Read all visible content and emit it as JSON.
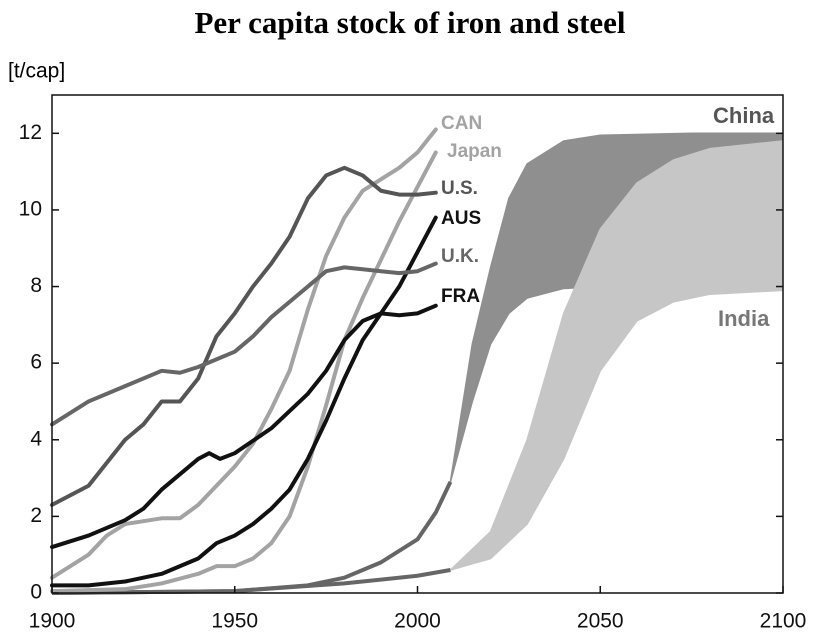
{
  "chart_data": {
    "type": "line",
    "title": "Per capita stock of iron and steel",
    "y_label": "[t/cap]",
    "xlim": [
      1900,
      2100
    ],
    "ylim": [
      0,
      13
    ],
    "xticks": [
      1900,
      1950,
      2000,
      2050,
      2100
    ],
    "yticks": [
      0,
      2,
      4,
      6,
      8,
      10,
      12
    ],
    "series": [
      {
        "name": "CAN",
        "color": "#a3a3a3",
        "x": [
          1900,
          1910,
          1915,
          1920,
          1930,
          1935,
          1940,
          1945,
          1950,
          1955,
          1960,
          1965,
          1970,
          1975,
          1980,
          1985,
          1990,
          1995,
          2000,
          2005
        ],
        "values": [
          0.4,
          1.0,
          1.5,
          1.8,
          1.95,
          1.95,
          2.3,
          2.8,
          3.3,
          3.9,
          4.8,
          5.8,
          7.4,
          8.8,
          9.8,
          10.5,
          10.8,
          11.1,
          11.5,
          12.1
        ]
      },
      {
        "name": "Japan",
        "color": "#a3a3a3",
        "x": [
          1900,
          1920,
          1930,
          1940,
          1945,
          1950,
          1955,
          1960,
          1965,
          1970,
          1975,
          1980,
          1985,
          1990,
          1995,
          2000,
          2005
        ],
        "values": [
          0.05,
          0.1,
          0.25,
          0.5,
          0.7,
          0.7,
          0.9,
          1.3,
          2.0,
          3.3,
          4.9,
          6.6,
          7.7,
          8.7,
          9.7,
          10.6,
          11.5
        ]
      },
      {
        "name": "U.S.",
        "color": "#555555",
        "x": [
          1900,
          1910,
          1920,
          1925,
          1930,
          1935,
          1940,
          1945,
          1950,
          1955,
          1960,
          1965,
          1970,
          1975,
          1980,
          1985,
          1990,
          1995,
          2000,
          2005
        ],
        "values": [
          2.3,
          2.8,
          4.0,
          4.4,
          5.0,
          5.0,
          5.6,
          6.7,
          7.3,
          8.0,
          8.6,
          9.3,
          10.3,
          10.9,
          11.1,
          10.9,
          10.5,
          10.4,
          10.4,
          10.45
        ]
      },
      {
        "name": "AUS",
        "color": "#111111",
        "x": [
          1900,
          1910,
          1920,
          1930,
          1940,
          1945,
          1950,
          1955,
          1960,
          1965,
          1970,
          1975,
          1980,
          1985,
          1990,
          1995,
          2000,
          2005
        ],
        "values": [
          0.2,
          0.2,
          0.3,
          0.5,
          0.9,
          1.3,
          1.5,
          1.8,
          2.2,
          2.7,
          3.5,
          4.5,
          5.6,
          6.6,
          7.3,
          8.0,
          8.9,
          9.8
        ]
      },
      {
        "name": "U.K.",
        "color": "#666666",
        "x": [
          1900,
          1910,
          1920,
          1930,
          1935,
          1940,
          1950,
          1955,
          1960,
          1965,
          1970,
          1975,
          1980,
          1985,
          1990,
          1995,
          2000,
          2005
        ],
        "values": [
          4.4,
          5.0,
          5.4,
          5.8,
          5.75,
          5.9,
          6.3,
          6.7,
          7.2,
          7.6,
          8.0,
          8.4,
          8.5,
          8.45,
          8.4,
          8.35,
          8.4,
          8.6
        ]
      },
      {
        "name": "FRA",
        "color": "#111111",
        "x": [
          1900,
          1910,
          1920,
          1925,
          1930,
          1940,
          1943,
          1946,
          1950,
          1960,
          1970,
          1975,
          1980,
          1985,
          1990,
          1995,
          2000,
          2005
        ],
        "values": [
          1.2,
          1.5,
          1.9,
          2.2,
          2.7,
          3.5,
          3.65,
          3.5,
          3.65,
          4.3,
          5.2,
          5.8,
          6.6,
          7.1,
          7.3,
          7.25,
          7.3,
          7.5
        ]
      }
    ],
    "bands": [
      {
        "name": "China",
        "color": "#8f8f8f",
        "line_color": "#666666",
        "hist_x": [
          1900,
          1950,
          1970,
          1980,
          1990,
          2000,
          2005,
          2009
        ],
        "hist_values": [
          0,
          0.05,
          0.2,
          0.4,
          0.8,
          1.4,
          2.1,
          2.9
        ],
        "x": [
          2009,
          2015,
          2020,
          2025,
          2030,
          2040,
          2050,
          2075,
          2100
        ],
        "upper": [
          2.9,
          6.5,
          8.5,
          10.3,
          11.2,
          11.8,
          11.95,
          12,
          12
        ],
        "lower": [
          2.9,
          5.0,
          6.5,
          7.3,
          7.7,
          7.95,
          8.0,
          8,
          8
        ]
      },
      {
        "name": "India",
        "color": "#c6c6c6",
        "line_color": "#666666",
        "hist_x": [
          1900,
          1950,
          1980,
          2000,
          2009
        ],
        "hist_values": [
          0,
          0.05,
          0.25,
          0.45,
          0.6
        ],
        "x": [
          2009,
          2020,
          2030,
          2040,
          2050,
          2060,
          2070,
          2080,
          2100
        ],
        "upper": [
          0.6,
          1.6,
          4.0,
          7.3,
          9.5,
          10.7,
          11.3,
          11.6,
          11.8
        ],
        "lower": [
          0.6,
          0.9,
          1.8,
          3.5,
          5.8,
          7.1,
          7.6,
          7.8,
          7.9
        ]
      }
    ]
  }
}
